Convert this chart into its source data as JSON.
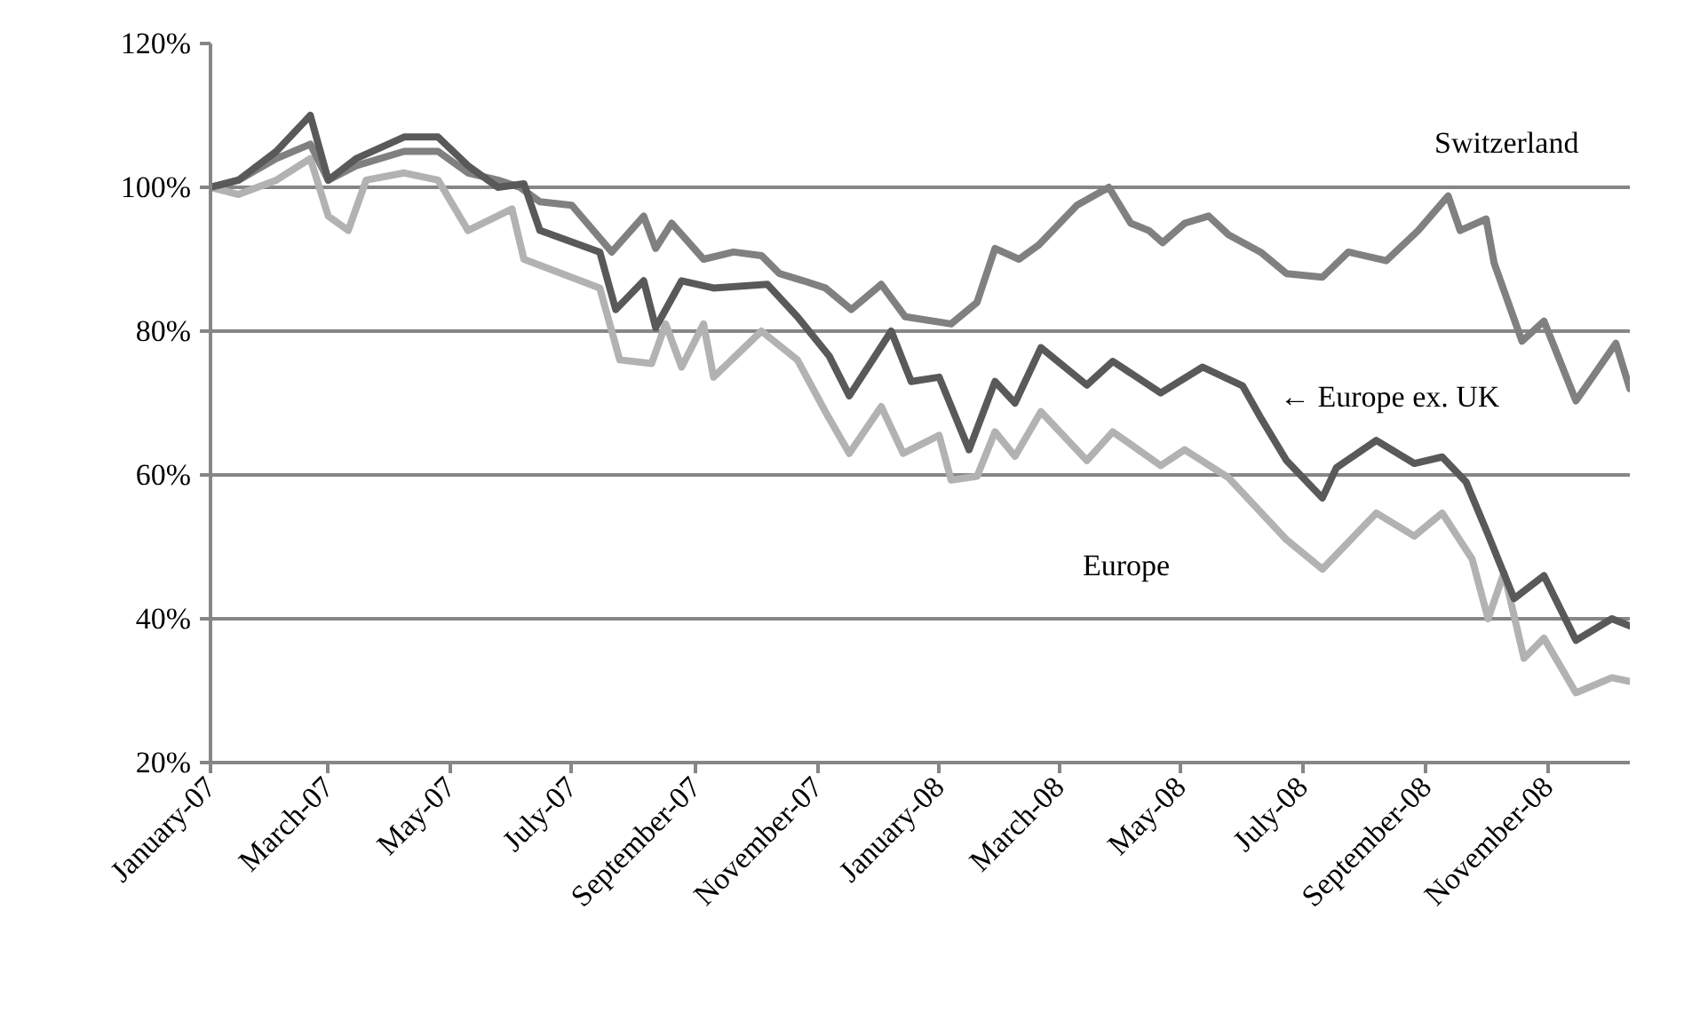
{
  "chart_data": {
    "type": "line",
    "xlim": [
      "2007-01-01",
      "2008-12-12"
    ],
    "xticks": [
      {
        "value": "2007-01-01",
        "label": "January-07"
      },
      {
        "value": "2007-03-01",
        "label": "March-07"
      },
      {
        "value": "2007-05-01",
        "label": "May-07"
      },
      {
        "value": "2007-07-01",
        "label": "July-07"
      },
      {
        "value": "2007-09-01",
        "label": "September-07"
      },
      {
        "value": "2007-11-01",
        "label": "November-07"
      },
      {
        "value": "2008-01-01",
        "label": "January-08"
      },
      {
        "value": "2008-03-01",
        "label": "March-08"
      },
      {
        "value": "2008-05-01",
        "label": "May-08"
      },
      {
        "value": "2008-07-01",
        "label": "July-08"
      },
      {
        "value": "2008-09-01",
        "label": "September-08"
      },
      {
        "value": "2008-11-01",
        "label": "November-08"
      }
    ],
    "ylim": [
      20,
      120
    ],
    "yticks": [
      {
        "value": 20,
        "label": "20%"
      },
      {
        "value": 40,
        "label": "40%"
      },
      {
        "value": 60,
        "label": "60%"
      },
      {
        "value": 80,
        "label": "80%"
      },
      {
        "value": 100,
        "label": "100%"
      },
      {
        "value": 120,
        "label": "120%"
      }
    ],
    "grid": "y",
    "marker": "none",
    "line_style": "solid",
    "annotations": [
      "Switzerland",
      "← Europe ex. UK",
      "Europe"
    ],
    "series": [
      {
        "color": "#b2b2b2",
        "x": [
          "2007-01-01",
          "2007-01-15",
          "2007-02-03",
          "2007-02-20",
          "2007-03-01",
          "2007-03-11",
          "2007-03-20",
          "2007-04-08",
          "2007-04-25",
          "2007-05-10",
          "2007-06-01",
          "2007-06-07",
          "2007-07-15",
          "2007-07-25",
          "2007-08-10",
          "2007-08-17",
          "2007-08-25",
          "2007-09-05",
          "2007-09-10",
          "2007-10-04",
          "2007-10-22",
          "2007-11-05",
          "2007-11-17",
          "2007-12-03",
          "2007-12-14",
          "2008-01-01",
          "2008-01-07",
          "2008-01-20",
          "2008-01-29",
          "2008-02-08",
          "2008-02-21",
          "2008-03-15",
          "2008-03-28",
          "2008-04-21",
          "2008-05-03",
          "2008-05-25",
          "2008-06-23",
          "2008-07-11",
          "2008-08-07",
          "2008-08-26",
          "2008-09-09",
          "2008-09-24",
          "2008-10-02",
          "2008-10-10",
          "2008-10-20",
          "2008-10-30",
          "2008-11-15",
          "2008-12-03",
          "2008-12-12"
        ],
        "values": [
          100,
          99,
          101,
          104,
          96,
          94,
          101,
          102,
          101,
          94,
          97,
          90,
          86,
          76,
          75.5,
          81,
          75,
          81,
          73.6,
          80,
          76,
          68.8,
          63,
          69.5,
          63,
          65.5,
          59.3,
          59.8,
          66,
          62.6,
          68.8,
          62,
          66,
          61.3,
          63.5,
          59.6,
          51,
          46.9,
          54.7,
          51.5,
          54.7,
          48.3,
          40,
          46.4,
          34.5,
          37.3,
          29.7,
          31.8,
          31.3
        ]
      },
      {
        "color": "#808080",
        "x": [
          "2007-01-01",
          "2007-01-15",
          "2007-02-03",
          "2007-02-20",
          "2007-03-01",
          "2007-03-15",
          "2007-04-08",
          "2007-04-25",
          "2007-05-10",
          "2007-05-25",
          "2007-06-05",
          "2007-06-15",
          "2007-07-01",
          "2007-07-21",
          "2007-08-06",
          "2007-08-12",
          "2007-08-20",
          "2007-09-05",
          "2007-09-20",
          "2007-10-04",
          "2007-10-13",
          "2007-10-25",
          "2007-11-05",
          "2007-11-18",
          "2007-12-03",
          "2007-12-15",
          "2008-01-07",
          "2008-01-20",
          "2008-01-29",
          "2008-02-10",
          "2008-02-20",
          "2008-03-10",
          "2008-03-26",
          "2008-04-06",
          "2008-04-15",
          "2008-04-22",
          "2008-05-03",
          "2008-05-15",
          "2008-05-25",
          "2008-06-10",
          "2008-06-23",
          "2008-07-11",
          "2008-07-24",
          "2008-08-12",
          "2008-08-28",
          "2008-09-12",
          "2008-09-18",
          "2008-10-01",
          "2008-10-05",
          "2008-10-19",
          "2008-10-30",
          "2008-11-15",
          "2008-12-05",
          "2008-12-12"
        ],
        "values": [
          100,
          101,
          104,
          106,
          101,
          103,
          105,
          105,
          102,
          101,
          100,
          98,
          97.5,
          91,
          96,
          91.5,
          95,
          90,
          91,
          90.5,
          88,
          87,
          86,
          83,
          86.5,
          82,
          81,
          84,
          91.5,
          90,
          92,
          97.5,
          100,
          95,
          94,
          92.3,
          95,
          96,
          93.4,
          91,
          88,
          87.5,
          91,
          89.8,
          94,
          98.8,
          94,
          95.6,
          89.5,
          78.6,
          81.4,
          70.3,
          78.3,
          72
        ]
      },
      {
        "color": "#595959",
        "x": [
          "2007-01-01",
          "2007-01-15",
          "2007-02-03",
          "2007-02-20",
          "2007-03-01",
          "2007-03-15",
          "2007-04-08",
          "2007-04-25",
          "2007-05-10",
          "2007-05-25",
          "2007-06-07",
          "2007-06-15",
          "2007-07-15",
          "2007-07-23",
          "2007-08-06",
          "2007-08-12",
          "2007-08-25",
          "2007-09-10",
          "2007-10-07",
          "2007-10-22",
          "2007-11-07",
          "2007-11-17",
          "2007-12-08",
          "2007-12-18",
          "2008-01-01",
          "2008-01-16",
          "2008-01-29",
          "2008-02-08",
          "2008-02-21",
          "2008-03-15",
          "2008-03-28",
          "2008-04-21",
          "2008-05-12",
          "2008-06-01",
          "2008-06-10",
          "2008-06-23",
          "2008-07-11",
          "2008-07-18",
          "2008-08-07",
          "2008-08-26",
          "2008-09-09",
          "2008-09-21",
          "2008-10-02",
          "2008-10-15",
          "2008-10-30",
          "2008-11-15",
          "2008-12-03",
          "2008-12-12"
        ],
        "values": [
          100,
          101,
          105,
          110,
          101,
          104,
          107,
          107,
          103,
          100,
          100.5,
          94,
          91,
          83,
          87,
          80.5,
          87,
          86,
          86.5,
          82,
          76.5,
          71,
          80,
          73,
          73.6,
          63.5,
          73,
          70,
          77.7,
          72.5,
          75.8,
          71.4,
          75,
          72.4,
          68,
          62,
          56.8,
          61,
          64.8,
          61.6,
          62.5,
          59,
          51.7,
          42.8,
          46,
          37,
          40,
          39
        ]
      }
    ]
  }
}
